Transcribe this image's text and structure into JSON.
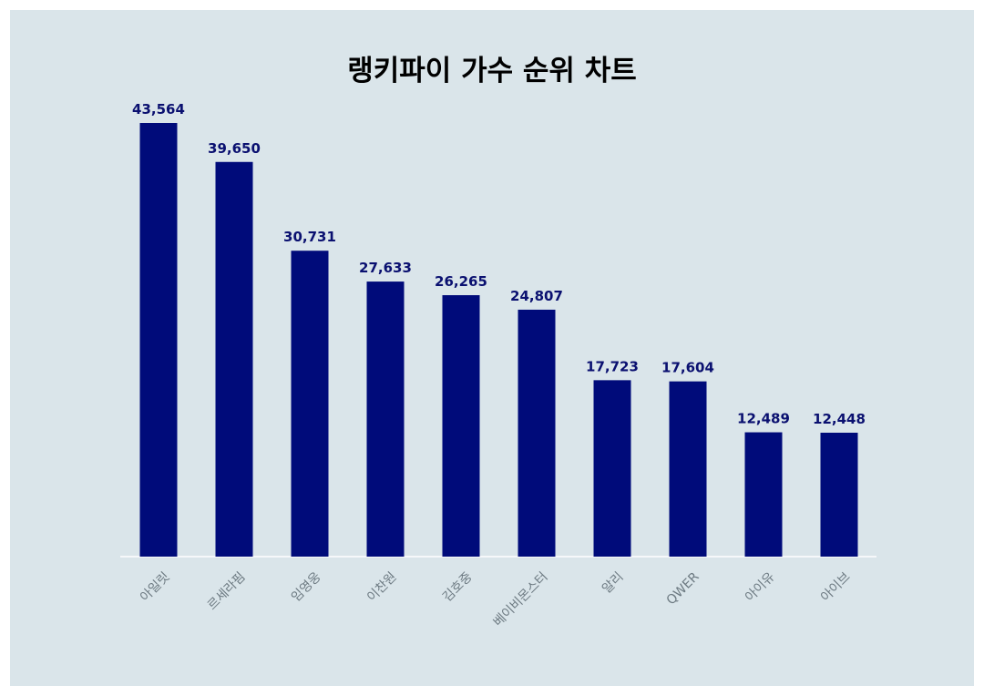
{
  "chart_data": {
    "type": "bar",
    "title": "랭키파이 가수 순위 차트",
    "categories": [
      "아일릿",
      "르세라핌",
      "임영웅",
      "이찬원",
      "김호중",
      "베이비몬스터",
      "알리",
      "QWER",
      "아이유",
      "아이브"
    ],
    "values": [
      43564,
      39650,
      30731,
      27633,
      26265,
      24807,
      17723,
      17604,
      12489,
      12448
    ],
    "value_labels": [
      "43,564",
      "39,650",
      "30,731",
      "27,633",
      "26,265",
      "24,807",
      "17,723",
      "17,604",
      "12,489",
      "12,448"
    ],
    "ylim": [
      0,
      43564
    ],
    "grid": false,
    "legend": "none",
    "colors": {
      "bar": "#000b7a",
      "label": "#0a1070",
      "background": "#dae5ea",
      "axis": "#ffffff"
    }
  }
}
